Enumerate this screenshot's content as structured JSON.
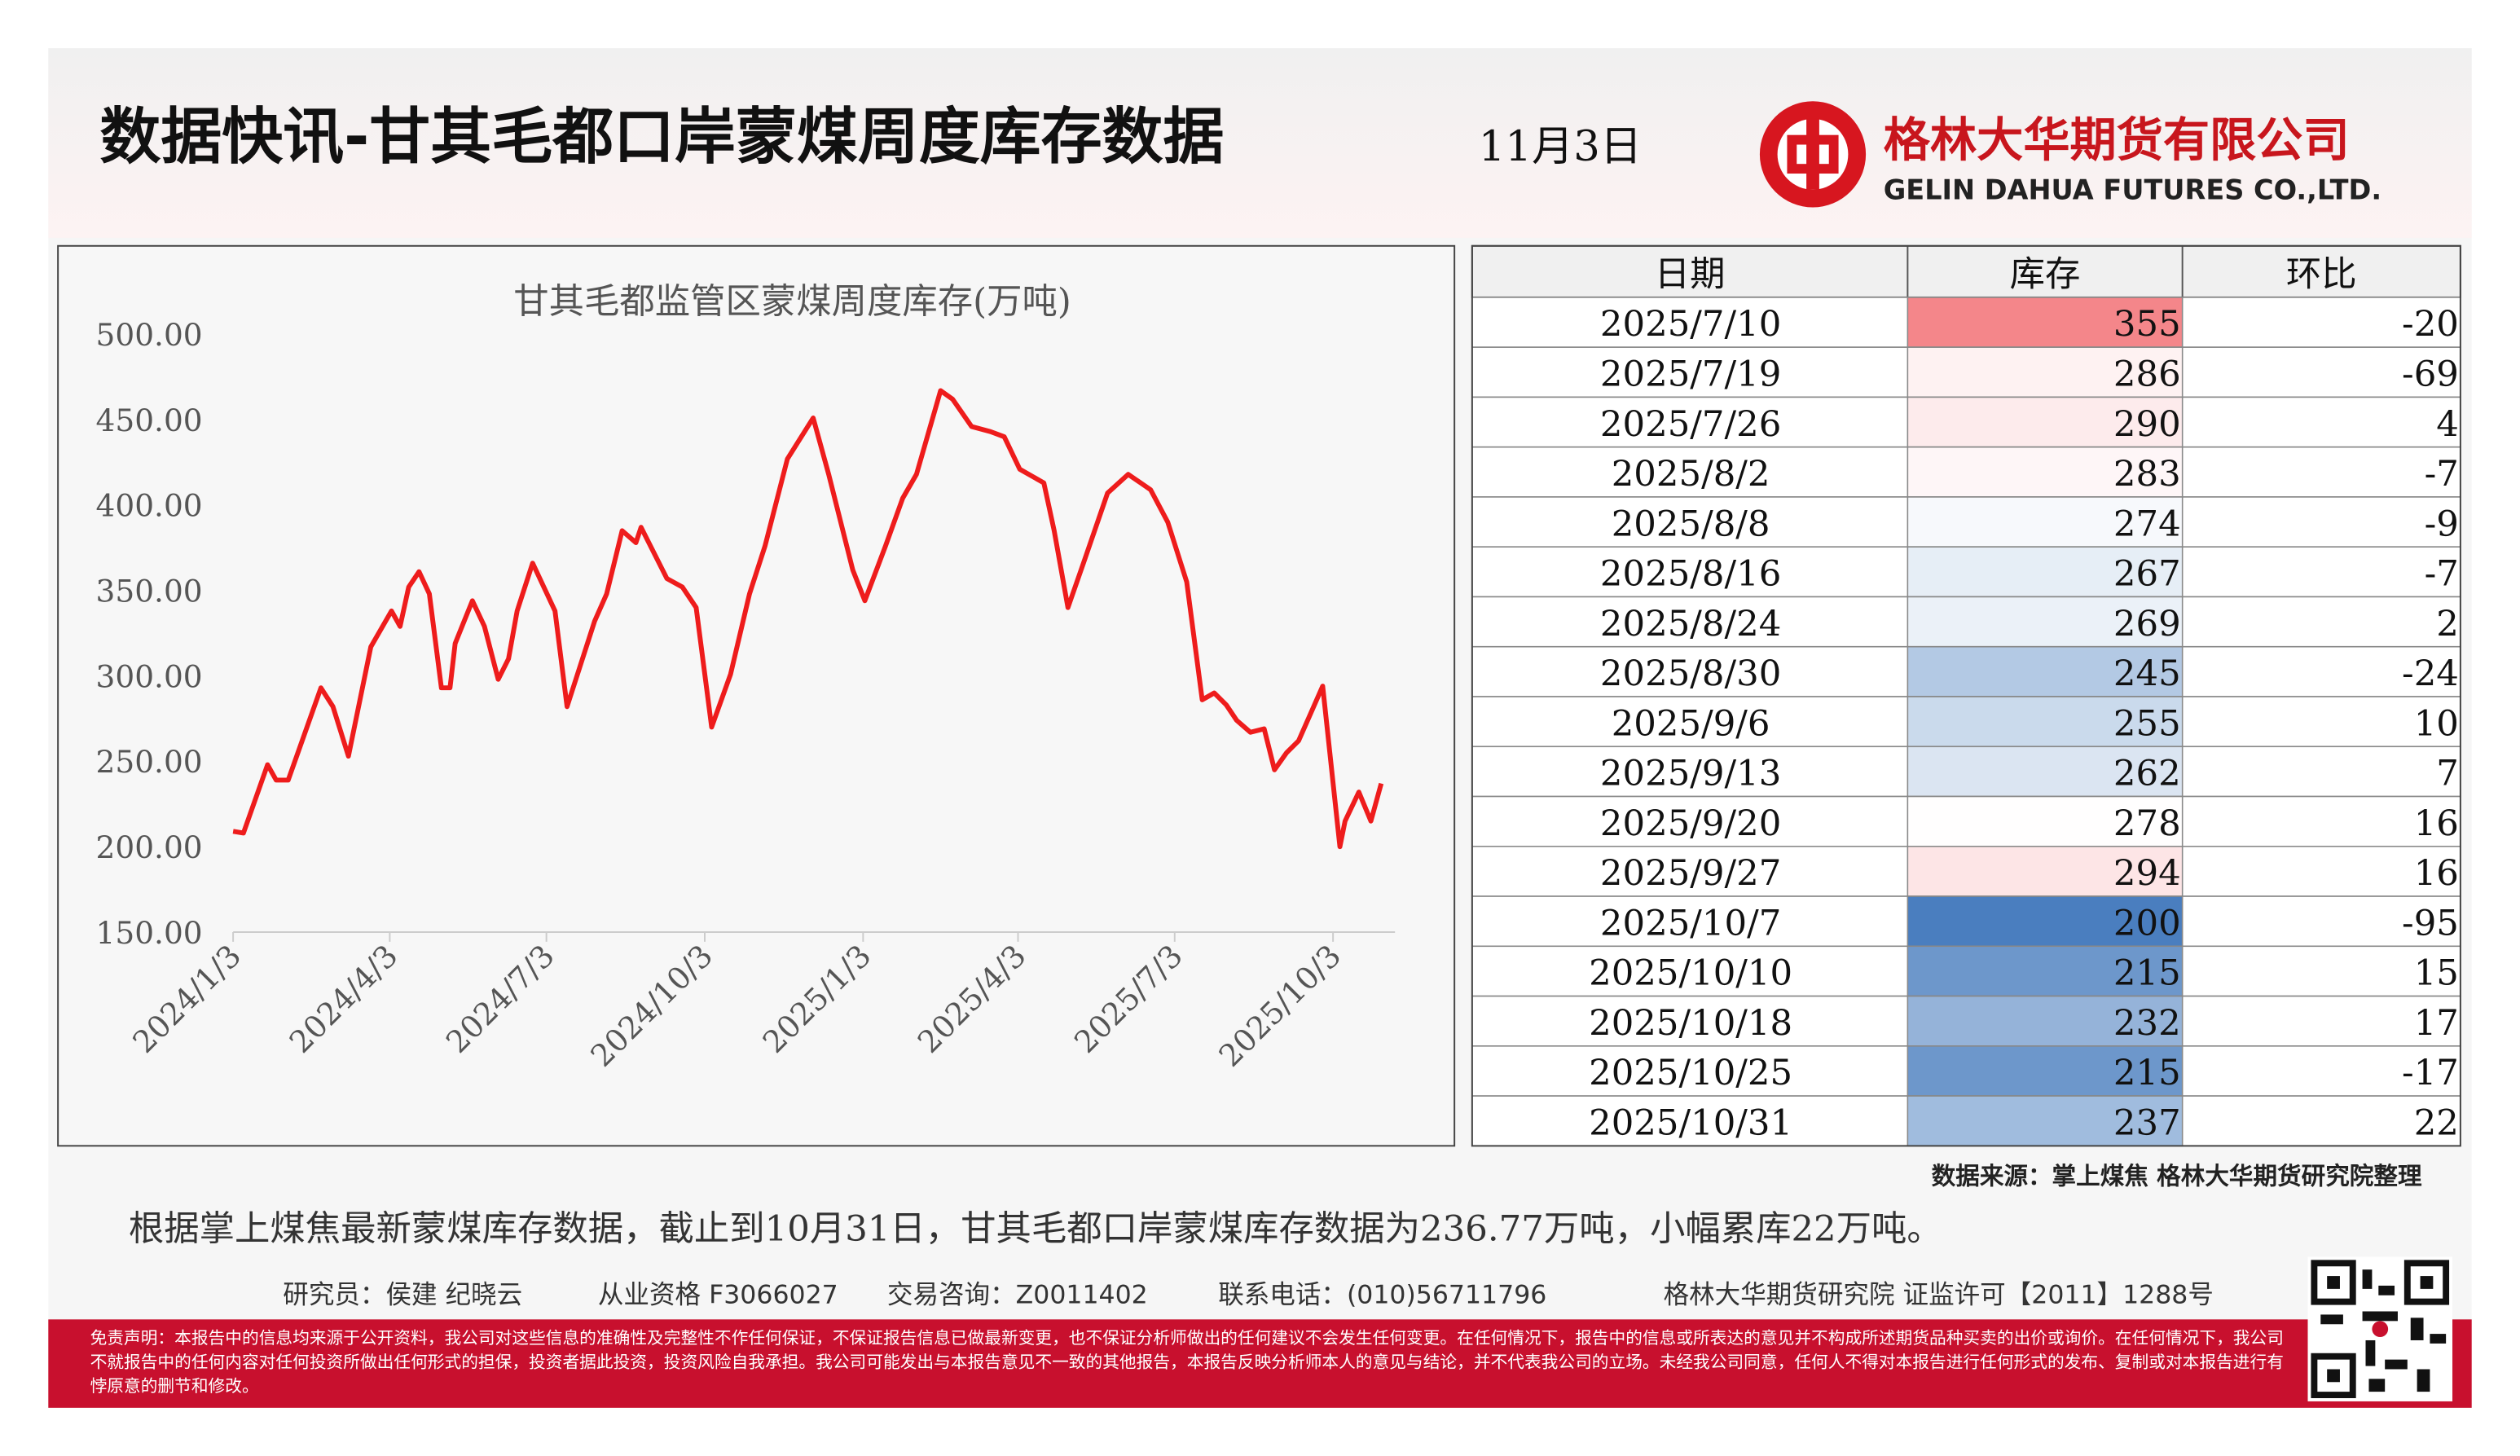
{
  "header": {
    "title": "数据快讯-甘其毛都口岸蒙煤周度库存数据",
    "date": "11月3日",
    "company_cn": "格林大华期货有限公司",
    "company_en": "GELIN DAHUA FUTURES CO.,LTD."
  },
  "chart_data": {
    "type": "line",
    "title": "甘其毛都监管区蒙煤周度库存(万吨)",
    "color": "#ee1c1c",
    "x": [
      "2024/1/3",
      "2024/1/9",
      "2024/1/23",
      "2024/1/28",
      "2024/2/4",
      "2024/2/23",
      "2024/3/1",
      "2024/3/10",
      "2024/3/23",
      "2024/4/4",
      "2024/4/9",
      "2024/4/14",
      "2024/4/20",
      "2024/4/26",
      "2024/5/3",
      "2024/5/8",
      "2024/5/11",
      "2024/5/21",
      "2024/5/28",
      "2024/6/5",
      "2024/6/11",
      "2024/6/16",
      "2024/6/25",
      "2024/7/8",
      "2024/7/15",
      "2024/7/23",
      "2024/7/31",
      "2024/8/7",
      "2024/8/16",
      "2024/8/24",
      "2024/8/27",
      "2024/9/11",
      "2024/9/20",
      "2024/9/28",
      "2024/10/7",
      "2024/10/18",
      "2024/10/29",
      "2024/11/7",
      "2024/11/20",
      "2024/12/5",
      "2024/12/14",
      "2024/12/28",
      "2025/1/4",
      "2025/1/16",
      "2025/1/26",
      "2025/2/3",
      "2025/2/17",
      "2025/2/24",
      "2025/3/7",
      "2025/3/18",
      "2025/3/26",
      "2025/4/4",
      "2025/4/18",
      "2025/4/24",
      "2025/5/2",
      "2025/5/11",
      "2025/5/25",
      "2025/6/6",
      "2025/6/19",
      "2025/6/29",
      "2025/7/10",
      "2025/7/19",
      "2025/7/26",
      "2025/8/2",
      "2025/8/8",
      "2025/8/16",
      "2025/8/24",
      "2025/8/30",
      "2025/9/6",
      "2025/9/13",
      "2025/9/20",
      "2025/9/27",
      "2025/10/7",
      "2025/10/10",
      "2025/10/18",
      "2025/10/25",
      "2025/10/31"
    ],
    "values": [
      209,
      208,
      248,
      239,
      239,
      293,
      282,
      253,
      317,
      338,
      329,
      352,
      361,
      348,
      293,
      293,
      319,
      344,
      329,
      298,
      310,
      338,
      366,
      338,
      282,
      307,
      332,
      348,
      385,
      378,
      387,
      357,
      352,
      340,
      270,
      301,
      348,
      376,
      427,
      451,
      418,
      362,
      344,
      376,
      404,
      418,
      467,
      462,
      446,
      443,
      440,
      421,
      413,
      385,
      340,
      366,
      407,
      418,
      409,
      390,
      355,
      286,
      290,
      283,
      274,
      267,
      269,
      245,
      255,
      262,
      278,
      294,
      200,
      215,
      232,
      215,
      237
    ],
    "xlim": [
      "2024/1/3",
      "2025/11/8"
    ],
    "xticks": [
      "2024/1/3",
      "2024/4/3",
      "2024/7/3",
      "2024/10/3",
      "2025/1/3",
      "2025/4/3",
      "2025/7/3",
      "2025/10/3"
    ],
    "ylim": [
      150,
      500
    ],
    "yticks": [
      {
        "value": 150,
        "label": "150.00"
      },
      {
        "value": 200,
        "label": "200.00"
      },
      {
        "value": 250,
        "label": "250.00"
      },
      {
        "value": 300,
        "label": "300.00"
      },
      {
        "value": 350,
        "label": "350.00"
      },
      {
        "value": 400,
        "label": "400.00"
      },
      {
        "value": 450,
        "label": "450.00"
      },
      {
        "value": 500,
        "label": "500.00"
      }
    ]
  },
  "table": {
    "headers": [
      "日期",
      "库存",
      "环比"
    ],
    "rows": [
      [
        "2025/7/10",
        355,
        -20
      ],
      [
        "2025/7/19",
        286,
        -69
      ],
      [
        "2025/7/26",
        290,
        4
      ],
      [
        "2025/8/2",
        283,
        -7
      ],
      [
        "2025/8/8",
        274,
        -9
      ],
      [
        "2025/8/16",
        267,
        -7
      ],
      [
        "2025/8/24",
        269,
        2
      ],
      [
        "2025/8/30",
        245,
        -24
      ],
      [
        "2025/9/6",
        255,
        10
      ],
      [
        "2025/9/13",
        262,
        7
      ],
      [
        "2025/9/20",
        278,
        16
      ],
      [
        "2025/9/27",
        294,
        16
      ],
      [
        "2025/10/7",
        200,
        -95
      ],
      [
        "2025/10/10",
        215,
        15
      ],
      [
        "2025/10/18",
        232,
        17
      ],
      [
        "2025/10/25",
        215,
        -17
      ],
      [
        "2025/10/31",
        237,
        22
      ]
    ]
  },
  "source": "数据来源：掌上煤焦 格林大华期货研究院整理",
  "summary": "根据掌上煤焦最新蒙煤库存数据，截止到10月31日，甘其毛都口岸蒙煤库存数据为236.77万吨，小幅累库22万吨。",
  "footer": {
    "researchers": "研究员：侯建 纪晓云",
    "qualification": "从业资格 F3066027",
    "consult": "交易咨询：Z0011402",
    "phone": "联系电话：(010)56711796",
    "institute": "格林大华期货研究院 证监许可【2011】1288号"
  },
  "disclaimer": "免责声明：本报告中的信息均来源于公开资料，我公司对这些信息的准确性及完整性不作任何保证，不保证报告信息已做最新变更，也不保证分析师做出的任何建议不会发生任何变更。在任何情况下，报告中的信息或所表达的意见并不构成所述期货品种买卖的出价或询价。在任何情况下，我公司不就报告中的任何内容对任何投资所做出任何形式的担保，投资者据此投资，投资风险自我承担。我公司可能发出与本报告意见不一致的其他报告，本报告反映分析师本人的意见与结论，并不代表我公司的立场。未经我公司同意，任何人不得对本报告进行任何形式的发布、复制或对本报告进行有悖原意的删节和修改。"
}
